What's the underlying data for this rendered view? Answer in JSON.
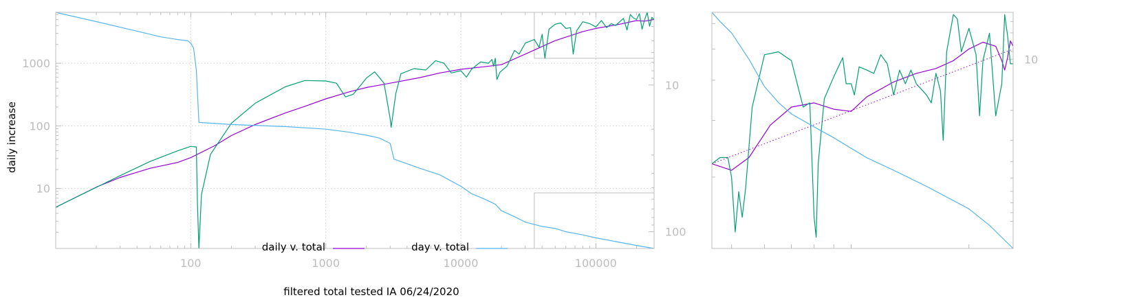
{
  "chart_data": [
    {
      "type": "line",
      "xlabel": "filtered total tested IA 06/24/2020",
      "ylabel": "daily increase",
      "xscale": "log",
      "yscale": "log",
      "xlim": [
        10,
        270000
      ],
      "ylim": [
        1.1,
        6500
      ],
      "x_ticks": [
        100,
        1000,
        10000,
        100000
      ],
      "x_tick_labels": [
        "100",
        "1000",
        "10000",
        "100000"
      ],
      "y_ticks": [
        10,
        100,
        1000
      ],
      "y_tick_labels": [
        "10",
        "100",
        "1000"
      ],
      "right_axis": {
        "scale": "log",
        "reversed": true,
        "lim": [
          3.2,
          130
        ],
        "ticks": [
          10,
          100
        ],
        "tick_labels": [
          "10",
          "100"
        ]
      },
      "grid": true,
      "legend_position": "bottom-center",
      "series": [
        {
          "name": "daily v. total",
          "color": "#9400d3",
          "points": [
            [
              10,
              5
            ],
            [
              20,
              10.5
            ],
            [
              30,
              15
            ],
            [
              50,
              21
            ],
            [
              80,
              26
            ],
            [
              100,
              31
            ],
            [
              150,
              48
            ],
            [
              200,
              70
            ],
            [
              300,
              105
            ],
            [
              500,
              160
            ],
            [
              700,
              205
            ],
            [
              1000,
              270
            ],
            [
              1500,
              350
            ],
            [
              2000,
              410
            ],
            [
              3000,
              480
            ],
            [
              5000,
              590
            ],
            [
              7000,
              700
            ],
            [
              10000,
              800
            ],
            [
              15000,
              880
            ],
            [
              20000,
              950
            ],
            [
              30000,
              1400
            ],
            [
              50000,
              2300
            ],
            [
              80000,
              3200
            ],
            [
              100000,
              3600
            ],
            [
              150000,
              4200
            ],
            [
              200000,
              4800
            ],
            [
              230000,
              4700
            ],
            [
              270000,
              5000
            ]
          ]
        },
        {
          "name": "",
          "color": "#009e73",
          "points": [
            [
              10,
              5
            ],
            [
              30,
              16
            ],
            [
              50,
              27
            ],
            [
              80,
              40
            ],
            [
              100,
              47
            ],
            [
              110,
              46
            ],
            [
              112,
              6
            ],
            [
              115,
              1.1
            ],
            [
              120,
              8
            ],
            [
              140,
              35
            ],
            [
              200,
              110
            ],
            [
              300,
              230
            ],
            [
              500,
              420
            ],
            [
              700,
              530
            ],
            [
              1000,
              520
            ],
            [
              1200,
              480
            ],
            [
              1400,
              290
            ],
            [
              1600,
              320
            ],
            [
              2000,
              580
            ],
            [
              2300,
              730
            ],
            [
              2700,
              480
            ],
            [
              3000,
              130
            ],
            [
              3050,
              95
            ],
            [
              3300,
              330
            ],
            [
              3600,
              680
            ],
            [
              4500,
              820
            ],
            [
              5500,
              780
            ],
            [
              6500,
              1100
            ],
            [
              7500,
              1000
            ],
            [
              8500,
              700
            ],
            [
              10000,
              760
            ],
            [
              11000,
              600
            ],
            [
              12000,
              800
            ],
            [
              14000,
              1050
            ],
            [
              16000,
              1000
            ],
            [
              17000,
              1150
            ],
            [
              17500,
              900
            ],
            [
              18000,
              1200
            ],
            [
              18500,
              550
            ],
            [
              19500,
              720
            ],
            [
              22000,
              900
            ],
            [
              25000,
              1600
            ],
            [
              27000,
              1400
            ],
            [
              30000,
              2100
            ],
            [
              35000,
              2400
            ],
            [
              38000,
              1800
            ],
            [
              40000,
              2900
            ],
            [
              42000,
              1200
            ],
            [
              45000,
              3500
            ],
            [
              50000,
              4200
            ],
            [
              55000,
              4400
            ],
            [
              60000,
              3600
            ],
            [
              65000,
              3700
            ],
            [
              68000,
              1400
            ],
            [
              72000,
              3300
            ],
            [
              80000,
              4600
            ],
            [
              90000,
              4300
            ],
            [
              100000,
              3800
            ],
            [
              110000,
              4800
            ],
            [
              120000,
              3700
            ],
            [
              130000,
              4300
            ],
            [
              140000,
              4000
            ],
            [
              160000,
              5200
            ],
            [
              170000,
              3400
            ],
            [
              180000,
              6000
            ],
            [
              190000,
              5300
            ],
            [
              200000,
              5000
            ],
            [
              210000,
              6200
            ],
            [
              220000,
              3500
            ],
            [
              230000,
              5000
            ],
            [
              240000,
              6500
            ],
            [
              250000,
              3900
            ],
            [
              260000,
              5400
            ],
            [
              270000,
              5000
            ]
          ]
        },
        {
          "name": "day v. total",
          "color": "#56b4e9",
          "axis": "right",
          "points": [
            [
              10,
              3.2
            ],
            [
              20,
              3.7
            ],
            [
              40,
              4.3
            ],
            [
              60,
              4.7
            ],
            [
              80,
              4.9
            ],
            [
              95,
              5.0
            ],
            [
              100,
              5.2
            ],
            [
              105,
              5.6
            ],
            [
              110,
              8.0
            ],
            [
              115,
              18
            ],
            [
              200,
              18.6
            ],
            [
              500,
              19.2
            ],
            [
              1000,
              20
            ],
            [
              1500,
              21
            ],
            [
              2000,
              22
            ],
            [
              2500,
              23
            ],
            [
              3000,
              25
            ],
            [
              3200,
              32
            ],
            [
              5000,
              37
            ],
            [
              7000,
              41
            ],
            [
              10000,
              49
            ],
            [
              12000,
              55
            ],
            [
              15000,
              60
            ],
            [
              18000,
              65
            ],
            [
              20000,
              72
            ],
            [
              25000,
              79
            ],
            [
              30000,
              86
            ],
            [
              40000,
              92
            ],
            [
              50000,
              95
            ],
            [
              60000,
              100
            ],
            [
              80000,
              105
            ],
            [
              100000,
              110
            ],
            [
              150000,
              118
            ],
            [
              200000,
              124
            ],
            [
              270000,
              130
            ]
          ]
        }
      ],
      "inset_regions": [
        {
          "x": [
            35000,
            270000
          ],
          "y": [
            1200,
            6500
          ]
        },
        {
          "x": [
            35000,
            270000
          ],
          "y": [
            1.1,
            8.5
          ]
        }
      ]
    },
    {
      "type": "line",
      "xscale": "log",
      "yscale": "log",
      "xlim": [
        35000,
        270000
      ],
      "ylim": [
        1200,
        6500
      ],
      "right_axis": {
        "scale": "log",
        "reversed": true,
        "lim": [
          5.3,
          130
        ],
        "ticks": [
          10
        ],
        "tick_labels": [
          "10"
        ]
      },
      "grid": false,
      "series": [
        {
          "name": "daily v. total",
          "color": "#9400d3",
          "points": [
            [
              35000,
              2200
            ],
            [
              40000,
              2100
            ],
            [
              45000,
              2300
            ],
            [
              52000,
              2900
            ],
            [
              60000,
              3300
            ],
            [
              70000,
              3400
            ],
            [
              80000,
              3250
            ],
            [
              90000,
              3200
            ],
            [
              100000,
              3550
            ],
            [
              120000,
              3950
            ],
            [
              140000,
              4200
            ],
            [
              160000,
              4350
            ],
            [
              180000,
              4600
            ],
            [
              200000,
              5000
            ],
            [
              220000,
              5250
            ],
            [
              240000,
              5100
            ],
            [
              250000,
              4600
            ],
            [
              255000,
              4300
            ],
            [
              260000,
              4700
            ],
            [
              265000,
              5300
            ],
            [
              270000,
              5100
            ]
          ]
        },
        {
          "name": "",
          "color": "#009e73",
          "points": [
            [
              35000,
              2200
            ],
            [
              37000,
              2300
            ],
            [
              39000,
              2300
            ],
            [
              40000,
              2000
            ],
            [
              41000,
              1350
            ],
            [
              42000,
              1800
            ],
            [
              43000,
              1500
            ],
            [
              44000,
              1850
            ],
            [
              46000,
              3300
            ],
            [
              50000,
              4800
            ],
            [
              55000,
              4900
            ],
            [
              60000,
              4600
            ],
            [
              65000,
              3300
            ],
            [
              68000,
              3400
            ],
            [
              70000,
              1500
            ],
            [
              71000,
              1300
            ],
            [
              72000,
              2200
            ],
            [
              75000,
              3500
            ],
            [
              80000,
              4100
            ],
            [
              85000,
              4700
            ],
            [
              87000,
              3900
            ],
            [
              90000,
              3900
            ],
            [
              92000,
              3600
            ],
            [
              95000,
              4400
            ],
            [
              100000,
              4300
            ],
            [
              105000,
              4200
            ],
            [
              110000,
              4800
            ],
            [
              115000,
              4500
            ],
            [
              120000,
              3600
            ],
            [
              125000,
              4300
            ],
            [
              130000,
              3900
            ],
            [
              135000,
              4300
            ],
            [
              140000,
              3900
            ],
            [
              150000,
              3600
            ],
            [
              155000,
              3400
            ],
            [
              160000,
              4200
            ],
            [
              165000,
              3700
            ],
            [
              168000,
              2600
            ],
            [
              172000,
              4900
            ],
            [
              180000,
              6400
            ],
            [
              185000,
              6200
            ],
            [
              190000,
              4900
            ],
            [
              200000,
              5800
            ],
            [
              210000,
              4800
            ],
            [
              215000,
              3100
            ],
            [
              220000,
              4600
            ],
            [
              230000,
              5600
            ],
            [
              240000,
              3100
            ],
            [
              250000,
              3900
            ],
            [
              255000,
              6400
            ],
            [
              260000,
              5500
            ],
            [
              265000,
              4500
            ],
            [
              270000,
              4500
            ]
          ]
        },
        {
          "name": "day v. total",
          "color": "#56b4e9",
          "axis": "right",
          "points": [
            [
              35000,
              5.3
            ],
            [
              37000,
              6.0
            ],
            [
              40000,
              7.0
            ],
            [
              45000,
              10
            ],
            [
              50000,
              14.5
            ],
            [
              55000,
              18
            ],
            [
              60000,
              21
            ],
            [
              70000,
              25
            ],
            [
              80000,
              29
            ],
            [
              100000,
              38
            ],
            [
              120000,
              45
            ],
            [
              150000,
              56
            ],
            [
              200000,
              76
            ],
            [
              230000,
              95
            ],
            [
              270000,
              130
            ]
          ]
        },
        {
          "name": "",
          "color": "#9400d3",
          "style": "dotted",
          "points": [
            [
              35000,
              2200
            ],
            [
              270000,
              5000
            ]
          ]
        }
      ]
    }
  ]
}
